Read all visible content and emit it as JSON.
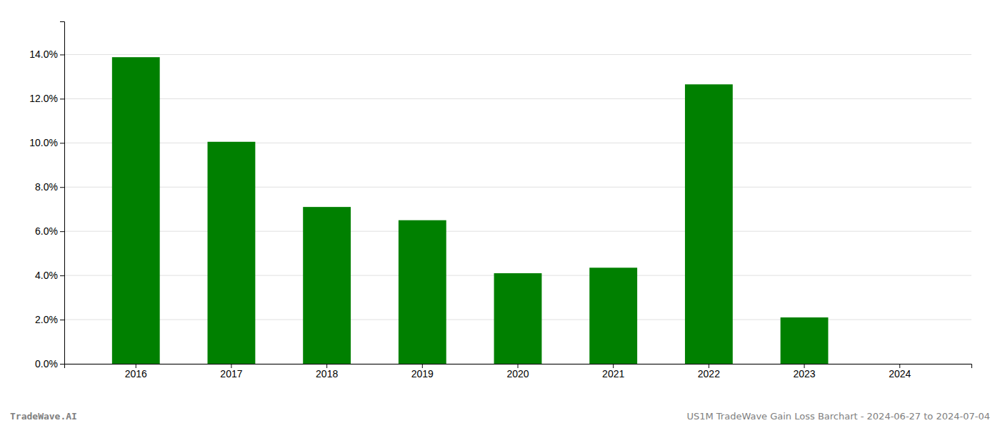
{
  "chart_data": {
    "type": "bar",
    "categories": [
      "2016",
      "2017",
      "2018",
      "2019",
      "2020",
      "2021",
      "2022",
      "2023",
      "2024"
    ],
    "values": [
      0.1388,
      0.1005,
      0.071,
      0.065,
      0.041,
      0.0435,
      0.1265,
      0.021,
      0.0
    ],
    "color": "#008000",
    "ylim": [
      0,
      0.155
    ],
    "yticks": [
      {
        "value": 0,
        "label": "0.0%"
      },
      {
        "value": 0.02,
        "label": "2.0%"
      },
      {
        "value": 0.04,
        "label": "4.0%"
      },
      {
        "value": 0.06,
        "label": "6.0%"
      },
      {
        "value": 0.08,
        "label": "8.0%"
      },
      {
        "value": 0.1,
        "label": "10.0%"
      },
      {
        "value": 0.12,
        "label": "12.0%"
      },
      {
        "value": 0.14,
        "label": "14.0%"
      }
    ],
    "grid": true,
    "annotations": [
      "TradeWave.AI",
      "US1M TradeWave Gain Loss Barchart - 2024-06-27 to 2024-07-04"
    ]
  }
}
